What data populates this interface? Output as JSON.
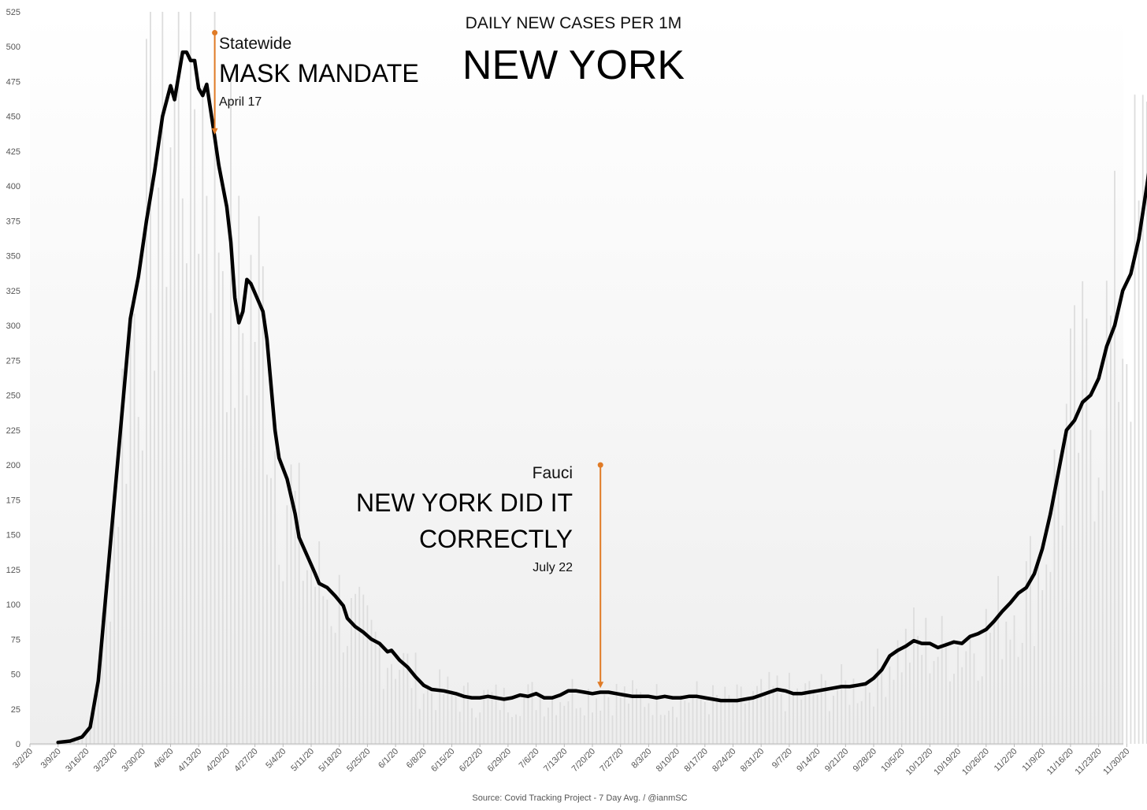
{
  "chart_data": {
    "type": "line",
    "title": "DAILY NEW CASES PER 1M",
    "subtitle": "NEW YORK",
    "source": "Source: Covid Tracking Project - 7 Day Avg. / @ianmSC",
    "ylim": [
      0,
      525
    ],
    "y_ticks": [
      "0",
      "25",
      "50",
      "75",
      "100",
      "125",
      "150",
      "175",
      "200",
      "225",
      "250",
      "275",
      "300",
      "325",
      "350",
      "375",
      "400",
      "425",
      "450",
      "475",
      "500",
      "525"
    ],
    "x_ticks": [
      "3/2/20",
      "3/9/20",
      "3/16/20",
      "3/23/20",
      "3/30/20",
      "4/6/20",
      "4/13/20",
      "4/20/20",
      "4/27/20",
      "5/4/20",
      "5/11/20",
      "5/18/20",
      "5/25/20",
      "6/1/20",
      "6/8/20",
      "6/15/20",
      "6/22/20",
      "6/29/20",
      "7/6/20",
      "7/13/20",
      "7/20/20",
      "7/27/20",
      "8/3/20",
      "8/10/20",
      "8/17/20",
      "8/24/20",
      "8/31/20",
      "9/7/20",
      "9/14/20",
      "9/21/20",
      "9/28/20",
      "10/5/20",
      "10/12/20",
      "10/19/20",
      "10/26/20",
      "11/2/20",
      "11/9/20",
      "11/16/20",
      "11/23/20",
      "11/30/20"
    ],
    "series": [
      {
        "type": "line",
        "color": "#000000",
        "points": [
          [
            "3/9/20",
            1
          ],
          [
            "3/12/20",
            2
          ],
          [
            "3/15/20",
            5
          ],
          [
            "3/17/20",
            12
          ],
          [
            "3/19/20",
            45
          ],
          [
            "3/21/20",
            110
          ],
          [
            "3/23/20",
            175
          ],
          [
            "3/25/20",
            240
          ],
          [
            "3/27/20",
            305
          ],
          [
            "3/29/20",
            335
          ],
          [
            "3/31/20",
            375
          ],
          [
            "4/2/20",
            410
          ],
          [
            "4/4/20",
            450
          ],
          [
            "4/6/20",
            472
          ],
          [
            "4/7/20",
            462
          ],
          [
            "4/9/20",
            496
          ],
          [
            "4/10/20",
            496
          ],
          [
            "4/11/20",
            490
          ],
          [
            "4/12/20",
            490
          ],
          [
            "4/13/20",
            470
          ],
          [
            "4/14/20",
            465
          ],
          [
            "4/15/20",
            473
          ],
          [
            "4/17/20",
            435
          ],
          [
            "4/18/20",
            415
          ],
          [
            "4/20/20",
            385
          ],
          [
            "4/21/20",
            360
          ],
          [
            "4/22/20",
            320
          ],
          [
            "4/23/20",
            302
          ],
          [
            "4/24/20",
            310
          ],
          [
            "4/25/20",
            333
          ],
          [
            "4/26/20",
            330
          ],
          [
            "4/29/20",
            310
          ],
          [
            "4/30/20",
            290
          ],
          [
            "5/2/20",
            225
          ],
          [
            "5/3/20",
            205
          ],
          [
            "5/5/20",
            190
          ],
          [
            "5/7/20",
            165
          ],
          [
            "5/8/20",
            148
          ],
          [
            "5/10/20",
            135
          ],
          [
            "5/12/20",
            122
          ],
          [
            "5/13/20",
            115
          ],
          [
            "5/15/20",
            112
          ],
          [
            "5/17/20",
            106
          ],
          [
            "5/19/20",
            99
          ],
          [
            "5/20/20",
            90
          ],
          [
            "5/22/20",
            84
          ],
          [
            "5/24/20",
            80
          ],
          [
            "5/26/20",
            75
          ],
          [
            "5/28/20",
            72
          ],
          [
            "5/30/20",
            66
          ],
          [
            "5/31/20",
            67
          ],
          [
            "6/2/20",
            60
          ],
          [
            "6/4/20",
            55
          ],
          [
            "6/6/20",
            48
          ],
          [
            "6/8/20",
            42
          ],
          [
            "6/10/20",
            39
          ],
          [
            "6/13/20",
            38
          ],
          [
            "6/16/20",
            36
          ],
          [
            "6/18/20",
            34
          ],
          [
            "6/20/20",
            33
          ],
          [
            "6/22/20",
            33
          ],
          [
            "6/24/20",
            34
          ],
          [
            "6/26/20",
            33
          ],
          [
            "6/28/20",
            32
          ],
          [
            "6/30/20",
            33
          ],
          [
            "7/2/20",
            35
          ],
          [
            "7/4/20",
            34
          ],
          [
            "7/6/20",
            36
          ],
          [
            "7/8/20",
            33
          ],
          [
            "7/10/20",
            33
          ],
          [
            "7/12/20",
            35
          ],
          [
            "7/14/20",
            38
          ],
          [
            "7/16/20",
            38
          ],
          [
            "7/18/20",
            37
          ],
          [
            "7/20/20",
            36
          ],
          [
            "7/22/20",
            37
          ],
          [
            "7/24/20",
            37
          ],
          [
            "7/26/20",
            36
          ],
          [
            "7/28/20",
            35
          ],
          [
            "7/30/20",
            34
          ],
          [
            "8/1/20",
            34
          ],
          [
            "8/3/20",
            34
          ],
          [
            "8/5/20",
            33
          ],
          [
            "8/7/20",
            34
          ],
          [
            "8/9/20",
            33
          ],
          [
            "8/11/20",
            33
          ],
          [
            "8/13/20",
            34
          ],
          [
            "8/15/20",
            34
          ],
          [
            "8/17/20",
            33
          ],
          [
            "8/19/20",
            32
          ],
          [
            "8/21/20",
            31
          ],
          [
            "8/23/20",
            31
          ],
          [
            "8/25/20",
            31
          ],
          [
            "8/27/20",
            32
          ],
          [
            "8/29/20",
            33
          ],
          [
            "8/31/20",
            35
          ],
          [
            "9/2/20",
            37
          ],
          [
            "9/4/20",
            39
          ],
          [
            "9/6/20",
            38
          ],
          [
            "9/8/20",
            36
          ],
          [
            "9/10/20",
            36
          ],
          [
            "9/12/20",
            37
          ],
          [
            "9/14/20",
            38
          ],
          [
            "9/16/20",
            39
          ],
          [
            "9/18/20",
            40
          ],
          [
            "9/20/20",
            41
          ],
          [
            "9/22/20",
            41
          ],
          [
            "9/24/20",
            42
          ],
          [
            "9/26/20",
            43
          ],
          [
            "9/28/20",
            47
          ],
          [
            "9/30/20",
            53
          ],
          [
            "10/2/20",
            63
          ],
          [
            "10/4/20",
            67
          ],
          [
            "10/6/20",
            70
          ],
          [
            "10/8/20",
            74
          ],
          [
            "10/10/20",
            72
          ],
          [
            "10/12/20",
            72
          ],
          [
            "10/14/20",
            69
          ],
          [
            "10/16/20",
            71
          ],
          [
            "10/18/20",
            73
          ],
          [
            "10/20/20",
            72
          ],
          [
            "10/22/20",
            77
          ],
          [
            "10/24/20",
            79
          ],
          [
            "10/26/20",
            82
          ],
          [
            "10/28/20",
            88
          ],
          [
            "10/30/20",
            95
          ],
          [
            "11/1/20",
            101
          ],
          [
            "11/3/20",
            108
          ],
          [
            "11/5/20",
            112
          ],
          [
            "11/7/20",
            122
          ],
          [
            "11/9/20",
            140
          ],
          [
            "11/11/20",
            165
          ],
          [
            "11/13/20",
            195
          ],
          [
            "11/15/20",
            225
          ],
          [
            "11/17/20",
            232
          ],
          [
            "11/19/20",
            245
          ],
          [
            "11/21/20",
            250
          ],
          [
            "11/23/20",
            262
          ],
          [
            "11/25/20",
            285
          ],
          [
            "11/27/20",
            300
          ],
          [
            "11/29/20",
            325
          ],
          [
            "12/1/20",
            337
          ],
          [
            "12/3/20",
            362
          ],
          [
            "12/5/20",
            400
          ],
          [
            "12/6/20",
            420
          ]
        ]
      }
    ],
    "annotations": [
      {
        "date": "4/17/20",
        "label_small": "Statewide",
        "label_big": "MASK MANDATE",
        "label_date": "April 17",
        "arrow_top_value": 510,
        "arrow_bottom_value": 437,
        "color": "#E07B26"
      },
      {
        "date": "7/22/20",
        "label_small": "Fauci",
        "label_big_1": "NEW YORK DID IT",
        "label_big_2": "CORRECTLY",
        "label_date": "July 22",
        "arrow_top_value": 200,
        "arrow_bottom_value": 40,
        "color": "#E07B26"
      }
    ]
  }
}
